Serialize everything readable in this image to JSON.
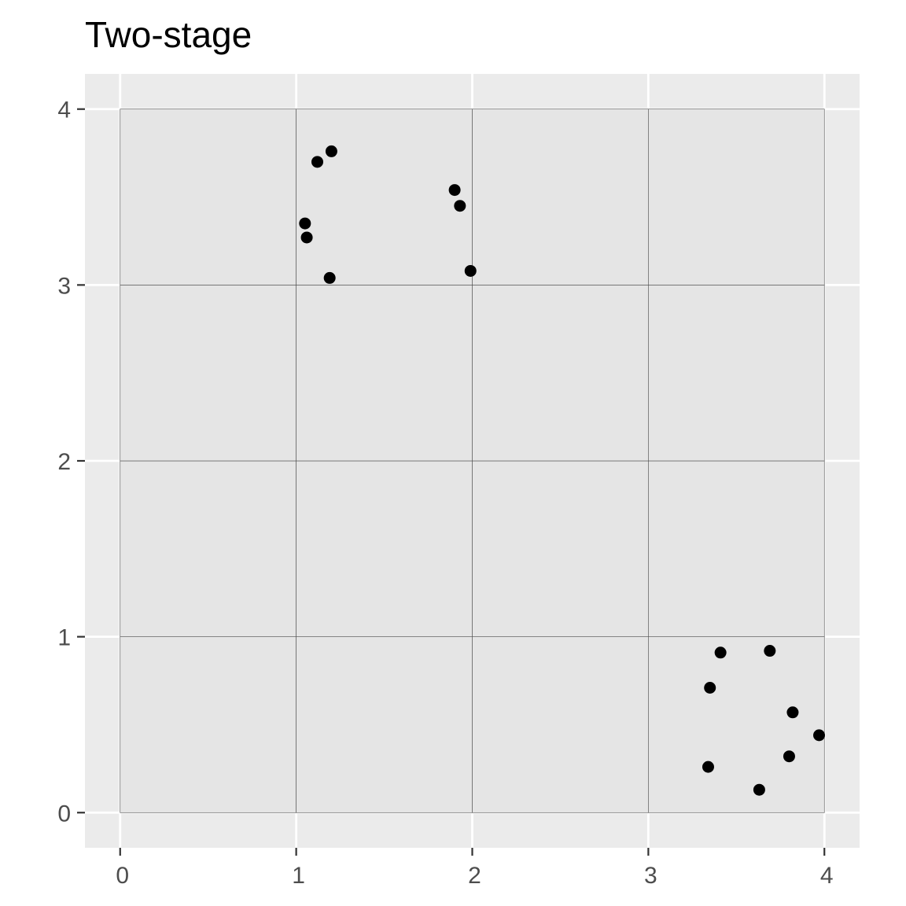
{
  "chart_data": {
    "type": "scatter",
    "title": "Two-stage",
    "xlabel": "",
    "ylabel": "",
    "xlim": [
      -0.2,
      4.2
    ],
    "ylim": [
      -0.2,
      4.2
    ],
    "x_ticks": [
      0,
      1,
      2,
      3,
      4
    ],
    "y_ticks": [
      0,
      1,
      2,
      3,
      4
    ],
    "x_tick_labels": [
      "0",
      "1",
      "2",
      "3",
      "4"
    ],
    "y_tick_labels": [
      "0",
      "1",
      "2",
      "3",
      "4"
    ],
    "grid": true,
    "grid_cells": {
      "x_range": [
        0,
        4
      ],
      "y_range": [
        0,
        4
      ],
      "step": 1
    },
    "colors": {
      "panel_background": "#ebebeb",
      "cell_fill": "#e5e5e5",
      "cell_border": "#4d4d4d",
      "grid_line": "#ffffff",
      "point": "#000000",
      "tick_label": "#4d4d4d",
      "tick_mark": "#333333"
    },
    "series": [
      {
        "name": "points",
        "points": [
          {
            "x": 1.12,
            "y": 3.7
          },
          {
            "x": 1.2,
            "y": 3.76
          },
          {
            "x": 1.05,
            "y": 3.35
          },
          {
            "x": 1.06,
            "y": 3.27
          },
          {
            "x": 1.19,
            "y": 3.04
          },
          {
            "x": 1.9,
            "y": 3.54
          },
          {
            "x": 1.93,
            "y": 3.45
          },
          {
            "x": 1.99,
            "y": 3.08
          },
          {
            "x": 3.41,
            "y": 0.91
          },
          {
            "x": 3.69,
            "y": 0.92
          },
          {
            "x": 3.35,
            "y": 0.71
          },
          {
            "x": 3.82,
            "y": 0.57
          },
          {
            "x": 3.97,
            "y": 0.44
          },
          {
            "x": 3.8,
            "y": 0.32
          },
          {
            "x": 3.34,
            "y": 0.26
          },
          {
            "x": 3.63,
            "y": 0.13
          }
        ]
      }
    ]
  }
}
